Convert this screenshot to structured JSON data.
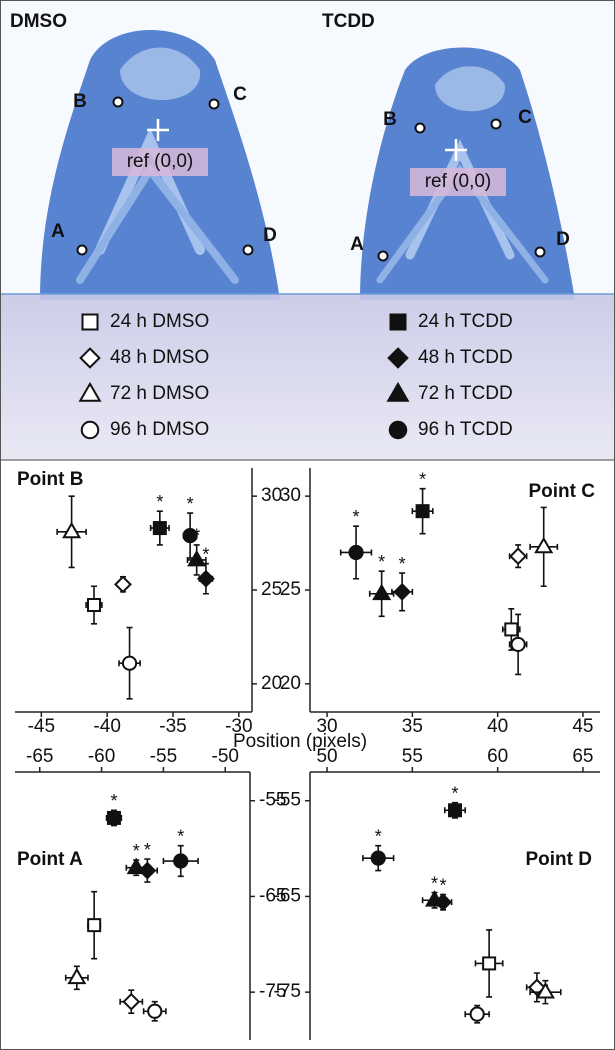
{
  "images": [
    {
      "title": "DMSO",
      "points": [
        "A",
        "B",
        "C",
        "D"
      ],
      "ref": "ref (0,0)"
    },
    {
      "title": "TCDD",
      "points": [
        "A",
        "B",
        "C",
        "D"
      ],
      "ref": "ref (0,0)"
    }
  ],
  "axis_label": "Position (pixels)",
  "chart_data": [
    {
      "type": "scatter",
      "title": "Point B",
      "title_corner": "top-left",
      "x_axis_side": "bottom",
      "y_axis_side": "right",
      "xlim": [
        -47,
        -29
      ],
      "xticks": [
        -45,
        -40,
        -35,
        -30
      ],
      "ylim": [
        18.5,
        31.5
      ],
      "yticks": [
        20,
        25,
        30
      ],
      "series": [
        {
          "name": "24 h DMSO",
          "marker": "square",
          "filled": false,
          "x": [
            -41
          ],
          "values": [
            24.2
          ],
          "xerr": [
            0.6
          ],
          "yerr": [
            1
          ]
        },
        {
          "name": "48 h DMSO",
          "marker": "diamond",
          "filled": false,
          "x": [
            -38.8
          ],
          "values": [
            25.3
          ],
          "xerr": [
            0.4
          ],
          "yerr": [
            0.4
          ]
        },
        {
          "name": "72 h DMSO",
          "marker": "triangle",
          "filled": false,
          "x": [
            -42.7
          ],
          "values": [
            28.1
          ],
          "xerr": [
            1.1
          ],
          "yerr": [
            1.9
          ]
        },
        {
          "name": "96 h DMSO",
          "marker": "circle",
          "filled": false,
          "x": [
            -38.3
          ],
          "values": [
            21.1
          ],
          "xerr": [
            0.8
          ],
          "yerr": [
            1.9
          ]
        },
        {
          "name": "24 h TCDD",
          "marker": "square",
          "filled": true,
          "x": [
            -36
          ],
          "values": [
            28.3
          ],
          "xerr": [
            0.7
          ],
          "yerr": [
            0.9
          ],
          "annotation": "*"
        },
        {
          "name": "48 h TCDD",
          "marker": "diamond",
          "filled": true,
          "x": [
            -32.5
          ],
          "values": [
            25.6
          ],
          "xerr": [
            0.5
          ],
          "yerr": [
            0.8
          ],
          "annotation": "*"
        },
        {
          "name": "72 h TCDD",
          "marker": "triangle",
          "filled": true,
          "x": [
            -33.2
          ],
          "values": [
            26.6
          ],
          "xerr": [
            0.7
          ],
          "yerr": [
            0.8
          ],
          "annotation": "*"
        },
        {
          "name": "96 h TCDD",
          "marker": "circle",
          "filled": true,
          "x": [
            -33.7
          ],
          "values": [
            27.9
          ],
          "xerr": [
            0.5
          ],
          "yerr": [
            1.2
          ],
          "annotation": "*"
        }
      ]
    },
    {
      "type": "scatter",
      "title": "Point C",
      "title_corner": "top-right",
      "x_axis_side": "bottom",
      "y_axis_side": "left",
      "xlim": [
        29,
        46
      ],
      "xticks": [
        30,
        35,
        40,
        45
      ],
      "ylim": [
        18.5,
        31.5
      ],
      "yticks": [
        20,
        25,
        30
      ],
      "series": [
        {
          "marker": "square",
          "filled": false,
          "x": [
            40.8
          ],
          "values": [
            22.9
          ],
          "xerr": [
            0.5
          ],
          "yerr": [
            1.1
          ]
        },
        {
          "marker": "diamond",
          "filled": false,
          "x": [
            41.2
          ],
          "values": [
            26.8
          ],
          "xerr": [
            0.5
          ],
          "yerr": [
            0.6
          ]
        },
        {
          "marker": "triangle",
          "filled": false,
          "x": [
            42.7
          ],
          "values": [
            27.3
          ],
          "xerr": [
            0.8
          ],
          "yerr": [
            2.1
          ]
        },
        {
          "marker": "circle",
          "filled": false,
          "x": [
            41.2
          ],
          "values": [
            22.1
          ],
          "xerr": [
            0.5
          ],
          "yerr": [
            1.6
          ]
        },
        {
          "marker": "square",
          "filled": true,
          "x": [
            35.6
          ],
          "values": [
            29.2
          ],
          "xerr": [
            0.6
          ],
          "yerr": [
            1.2
          ],
          "annotation": "*"
        },
        {
          "marker": "diamond",
          "filled": true,
          "x": [
            34.4
          ],
          "values": [
            24.9
          ],
          "xerr": [
            0.6
          ],
          "yerr": [
            1
          ],
          "annotation": "*"
        },
        {
          "marker": "triangle",
          "filled": true,
          "x": [
            33.2
          ],
          "values": [
            24.8
          ],
          "xerr": [
            0.7
          ],
          "yerr": [
            1.2
          ],
          "annotation": "*"
        },
        {
          "marker": "circle",
          "filled": true,
          "x": [
            31.7
          ],
          "values": [
            27
          ],
          "xerr": [
            0.9
          ],
          "yerr": [
            1.4
          ],
          "annotation": "*"
        }
      ]
    },
    {
      "type": "scatter",
      "title": "Point A",
      "title_corner": "middle-left",
      "x_axis_side": "top",
      "y_axis_side": "right",
      "xlim": [
        -67,
        -48
      ],
      "xticks": [
        -65,
        -60,
        -55,
        -50
      ],
      "ylim": [
        -80,
        -52
      ],
      "yticks": [
        -55,
        -65,
        -75
      ],
      "series": [
        {
          "marker": "square",
          "filled": false,
          "x": [
            -60.6
          ],
          "values": [
            -68
          ],
          "xerr": [
            0.5
          ],
          "yerr": [
            3.5
          ]
        },
        {
          "marker": "diamond",
          "filled": false,
          "x": [
            -57.6
          ],
          "values": [
            -76
          ],
          "xerr": [
            0.9
          ],
          "yerr": [
            1.2
          ]
        },
        {
          "marker": "triangle",
          "filled": false,
          "x": [
            -62
          ],
          "values": [
            -73.5
          ],
          "xerr": [
            0.9
          ],
          "yerr": [
            1.2
          ]
        },
        {
          "marker": "circle",
          "filled": false,
          "x": [
            -55.7
          ],
          "values": [
            -77
          ],
          "xerr": [
            0.9
          ],
          "yerr": [
            1
          ]
        },
        {
          "marker": "square",
          "filled": true,
          "x": [
            -59
          ],
          "values": [
            -56.8
          ],
          "xerr": [
            0.6
          ],
          "yerr": [
            0.8
          ],
          "annotation": "*"
        },
        {
          "marker": "diamond",
          "filled": true,
          "x": [
            -56.3
          ],
          "values": [
            -62.3
          ],
          "xerr": [
            0.8
          ],
          "yerr": [
            1.2
          ],
          "annotation": "*"
        },
        {
          "marker": "triangle",
          "filled": true,
          "x": [
            -57.2
          ],
          "values": [
            -62
          ],
          "xerr": [
            0.8
          ],
          "yerr": [
            0.8
          ],
          "annotation": "*"
        },
        {
          "marker": "circle",
          "filled": true,
          "x": [
            -53.6
          ],
          "values": [
            -61.3
          ],
          "xerr": [
            1.4
          ],
          "yerr": [
            1.6
          ],
          "annotation": "*"
        }
      ]
    },
    {
      "type": "scatter",
      "title": "Point D",
      "title_corner": "middle-right",
      "x_axis_side": "top",
      "y_axis_side": "left",
      "xlim": [
        49,
        66
      ],
      "xticks": [
        50,
        55,
        60,
        65
      ],
      "ylim": [
        -80,
        -52
      ],
      "yticks": [
        -55,
        -65,
        -75
      ],
      "series": [
        {
          "marker": "square",
          "filled": false,
          "x": [
            59.5
          ],
          "values": [
            -72
          ],
          "xerr": [
            0.8
          ],
          "yerr": [
            3.5
          ]
        },
        {
          "marker": "diamond",
          "filled": false,
          "x": [
            62.3
          ],
          "values": [
            -74.5
          ],
          "xerr": [
            0.6
          ],
          "yerr": [
            1.5
          ]
        },
        {
          "marker": "triangle",
          "filled": false,
          "x": [
            62.8
          ],
          "values": [
            -75
          ],
          "xerr": [
            0.9
          ],
          "yerr": [
            1.2
          ]
        },
        {
          "marker": "circle",
          "filled": false,
          "x": [
            58.8
          ],
          "values": [
            -77.3
          ],
          "xerr": [
            0.7
          ],
          "yerr": [
            0.9
          ]
        },
        {
          "marker": "square",
          "filled": true,
          "x": [
            57.5
          ],
          "values": [
            -56
          ],
          "xerr": [
            0.6
          ],
          "yerr": [
            0.8
          ],
          "annotation": "*"
        },
        {
          "marker": "diamond",
          "filled": true,
          "x": [
            56.8
          ],
          "values": [
            -65.6
          ],
          "xerr": [
            0.5
          ],
          "yerr": [
            0.8
          ],
          "annotation": "*"
        },
        {
          "marker": "triangle",
          "filled": true,
          "x": [
            56.3
          ],
          "values": [
            -65.4
          ],
          "xerr": [
            0.7
          ],
          "yerr": [
            0.8
          ],
          "annotation": "*"
        },
        {
          "marker": "circle",
          "filled": true,
          "x": [
            53
          ],
          "values": [
            -61
          ],
          "xerr": [
            0.9
          ],
          "yerr": [
            1.3
          ],
          "annotation": "*"
        }
      ]
    }
  ]
}
